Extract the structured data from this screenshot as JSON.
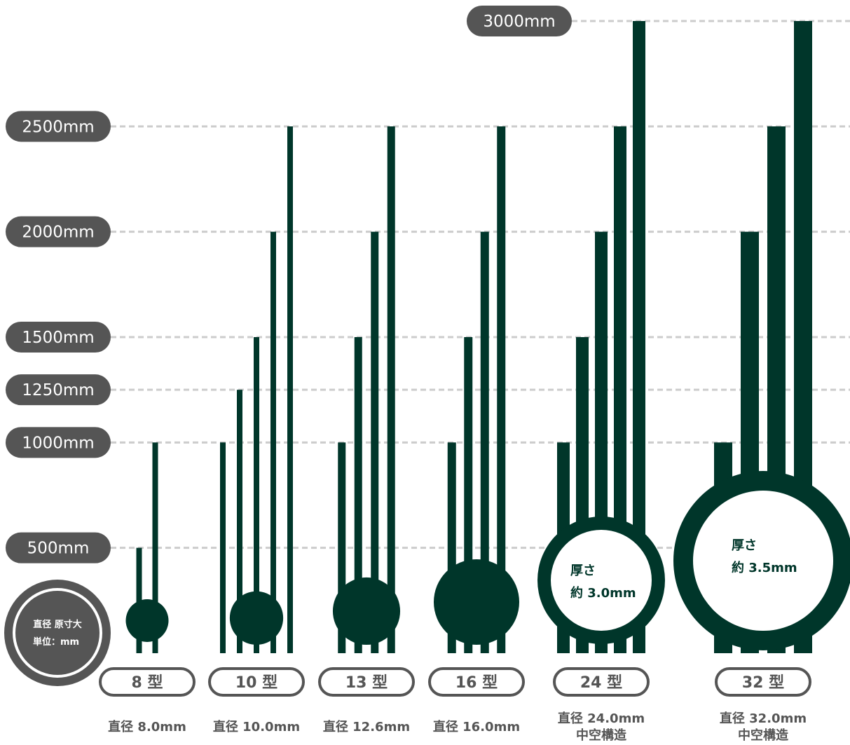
{
  "colors": {
    "rod": "#00362a",
    "pill": "#555555",
    "grid": "#cccccc",
    "caption": "#555555"
  },
  "badge": {
    "line1": "直径 原寸大",
    "line2": "単位：mm"
  },
  "chart_data": {
    "type": "bar",
    "ylabel": "",
    "y_ticks": [
      500,
      1000,
      1250,
      1500,
      2000,
      2500,
      3000
    ],
    "y_tick_labels": [
      "500mm",
      "1000mm",
      "1250mm",
      "1500mm",
      "2000mm",
      "2500mm",
      "3000mm"
    ],
    "groups": [
      {
        "label": "8 型",
        "caption": [
          "直径 8.0mm"
        ],
        "diameter_mm": 8.0,
        "lengths": [
          500,
          1000
        ],
        "hollow": false
      },
      {
        "label": "10 型",
        "caption": [
          "直径 10.0mm"
        ],
        "diameter_mm": 10.0,
        "lengths": [
          1000,
          1250,
          1500,
          2000,
          2500
        ],
        "hollow": false
      },
      {
        "label": "13 型",
        "caption": [
          "直径 12.6mm"
        ],
        "diameter_mm": 12.6,
        "lengths": [
          1000,
          1500,
          2000,
          2500
        ],
        "hollow": false
      },
      {
        "label": "16 型",
        "caption": [
          "直径 16.0mm"
        ],
        "diameter_mm": 16.0,
        "lengths": [
          1000,
          1500,
          2000,
          2500
        ],
        "hollow": false
      },
      {
        "label": "24 型",
        "caption": [
          "直径 24.0mm",
          "中空構造"
        ],
        "diameter_mm": 24.0,
        "lengths": [
          1000,
          1500,
          2000,
          2500,
          3000
        ],
        "hollow": true,
        "thickness": [
          "厚さ",
          "約 3.0mm"
        ]
      },
      {
        "label": "32 型",
        "caption": [
          "直径 32.0mm",
          "中空構造"
        ],
        "diameter_mm": 32.0,
        "lengths": [
          1000,
          2000,
          2500,
          3000
        ],
        "hollow": true,
        "thickness": [
          "厚さ",
          "約 3.5mm"
        ]
      }
    ]
  }
}
